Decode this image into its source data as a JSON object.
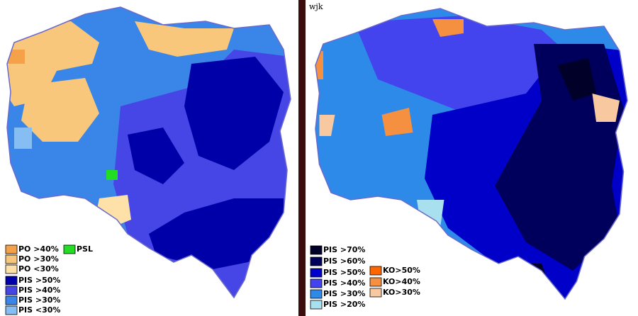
{
  "left_map": {
    "legend": [
      {
        "label": "PO >40%",
        "color": "#f5a14a"
      },
      {
        "label": "PO >30%",
        "color": "#f8c77c"
      },
      {
        "label": "PO <30%",
        "color": "#fde1a9"
      },
      {
        "label": "PSL",
        "color": "#22dd22"
      },
      {
        "label": "PIS >50%",
        "color": "#0000a8"
      },
      {
        "label": "PIS >40%",
        "color": "#4646e6"
      },
      {
        "label": "PIS >30%",
        "color": "#3a86e8"
      },
      {
        "label": "PIS <30%",
        "color": "#86bdf2"
      }
    ]
  },
  "right_map": {
    "author": "wjk",
    "legend": [
      {
        "label": "PIS >70%",
        "color": "#000028"
      },
      {
        "label": "PIS >60%",
        "color": "#00005c"
      },
      {
        "label": "PIS >50%",
        "color": "#0000c8"
      },
      {
        "label": "PIS >40%",
        "color": "#4444ee"
      },
      {
        "label": "PIS >30%",
        "color": "#2e8ae8"
      },
      {
        "label": "PIS >20%",
        "color": "#a8e0f0"
      },
      {
        "label": "KO>50%",
        "color": "#ff6600"
      },
      {
        "label": "KO>40%",
        "color": "#f49040"
      },
      {
        "label": "KO>30%",
        "color": "#f8c8a0"
      }
    ]
  }
}
